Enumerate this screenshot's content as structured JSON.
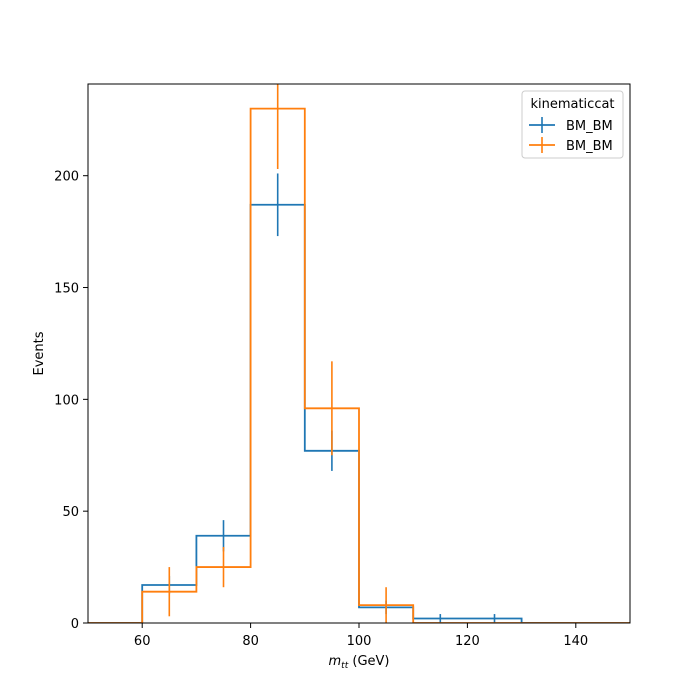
{
  "chart_data": {
    "type": "histogram-step",
    "xlabel_main": "m",
    "xlabel_sub": "tt",
    "xlabel_unit": " (GeV)",
    "ylabel": "Events",
    "xlim": [
      50,
      150
    ],
    "ylim": [
      0,
      241
    ],
    "xticks": [
      60,
      80,
      100,
      120,
      140
    ],
    "yticks": [
      0,
      50,
      100,
      150,
      200
    ],
    "bin_edges": [
      50,
      60,
      70,
      80,
      90,
      100,
      110,
      120,
      130,
      140,
      150
    ],
    "legend": {
      "title": "kinematiccat",
      "location": "upper right"
    },
    "series": [
      {
        "name": "BM_BM",
        "color": "#1f77b4",
        "values": [
          0,
          17,
          39,
          187,
          77,
          7,
          2,
          2,
          0,
          0
        ],
        "errors": [
          0,
          4,
          7,
          14,
          9,
          3,
          2,
          2,
          0,
          0
        ]
      },
      {
        "name": "BM_BM",
        "color": "#ff7f0e",
        "values": [
          0,
          14,
          25,
          230,
          96,
          8,
          0,
          0,
          0,
          0
        ],
        "errors": [
          0,
          11,
          9,
          27,
          21,
          8,
          0,
          0,
          0,
          0
        ]
      }
    ]
  }
}
